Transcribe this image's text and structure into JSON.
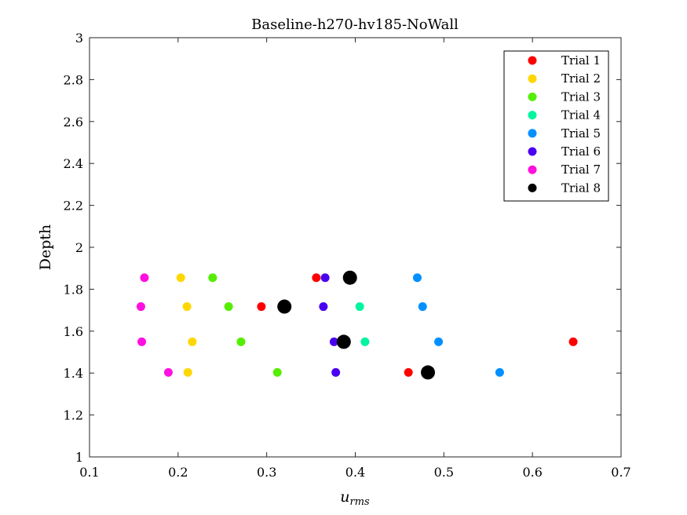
{
  "chart_data": {
    "type": "scatter",
    "title": "Baseline-h270-hv185-NoWall",
    "xlabel": "u",
    "xlabel_sub": "rms",
    "ylabel": "Depth",
    "xlim": [
      0.1,
      0.7
    ],
    "ylim": [
      1,
      3
    ],
    "xticks": [
      0.1,
      0.2,
      0.3,
      0.4,
      0.5,
      0.6,
      0.7
    ],
    "yticks": [
      1,
      1.2,
      1.4,
      1.6,
      1.8,
      2,
      2.2,
      2.4,
      2.6,
      2.8,
      3
    ],
    "xtick_labels": [
      "0.1",
      "0.2",
      "0.3",
      "0.4",
      "0.5",
      "0.6",
      "0.7"
    ],
    "ytick_labels": [
      "1",
      "1.2",
      "1.4",
      "1.6",
      "1.8",
      "2",
      "2.2",
      "2.4",
      "2.6",
      "2.8",
      "3"
    ],
    "grid": false,
    "legend_position": "top-right",
    "series": [
      {
        "name": "Trial 1",
        "color": "#ff0000",
        "marker": "small",
        "points": [
          [
            0.356,
            1.855
          ],
          [
            0.294,
            1.717
          ],
          [
            0.646,
            1.549
          ],
          [
            0.46,
            1.403
          ]
        ]
      },
      {
        "name": "Trial 2",
        "color": "#ffd700",
        "marker": "small",
        "points": [
          [
            0.203,
            1.855
          ],
          [
            0.21,
            1.717
          ],
          [
            0.216,
            1.549
          ],
          [
            0.211,
            1.403
          ]
        ]
      },
      {
        "name": "Trial 3",
        "color": "#55ee00",
        "marker": "small",
        "points": [
          [
            0.239,
            1.855
          ],
          [
            0.257,
            1.717
          ],
          [
            0.271,
            1.549
          ],
          [
            0.312,
            1.403
          ]
        ]
      },
      {
        "name": "Trial 4",
        "color": "#00f5a0",
        "marker": "small",
        "points": [
          [
            0.405,
            1.717
          ],
          [
            0.411,
            1.549
          ]
        ]
      },
      {
        "name": "Trial 5",
        "color": "#0090ff",
        "marker": "small",
        "points": [
          [
            0.47,
            1.855
          ],
          [
            0.476,
            1.717
          ],
          [
            0.494,
            1.549
          ],
          [
            0.563,
            1.403
          ]
        ]
      },
      {
        "name": "Trial 6",
        "color": "#4a00f0",
        "marker": "small",
        "points": [
          [
            0.366,
            1.855
          ],
          [
            0.364,
            1.717
          ],
          [
            0.376,
            1.549
          ],
          [
            0.378,
            1.403
          ]
        ]
      },
      {
        "name": "Trial 7",
        "color": "#ff10e0",
        "marker": "small",
        "points": [
          [
            0.162,
            1.855
          ],
          [
            0.158,
            1.717
          ],
          [
            0.159,
            1.549
          ],
          [
            0.189,
            1.403
          ]
        ]
      },
      {
        "name": "Trial 8",
        "color": "#000000",
        "marker": "large",
        "points": [
          [
            0.394,
            1.855
          ],
          [
            0.32,
            1.717
          ],
          [
            0.387,
            1.549
          ],
          [
            0.482,
            1.403
          ]
        ]
      }
    ]
  }
}
